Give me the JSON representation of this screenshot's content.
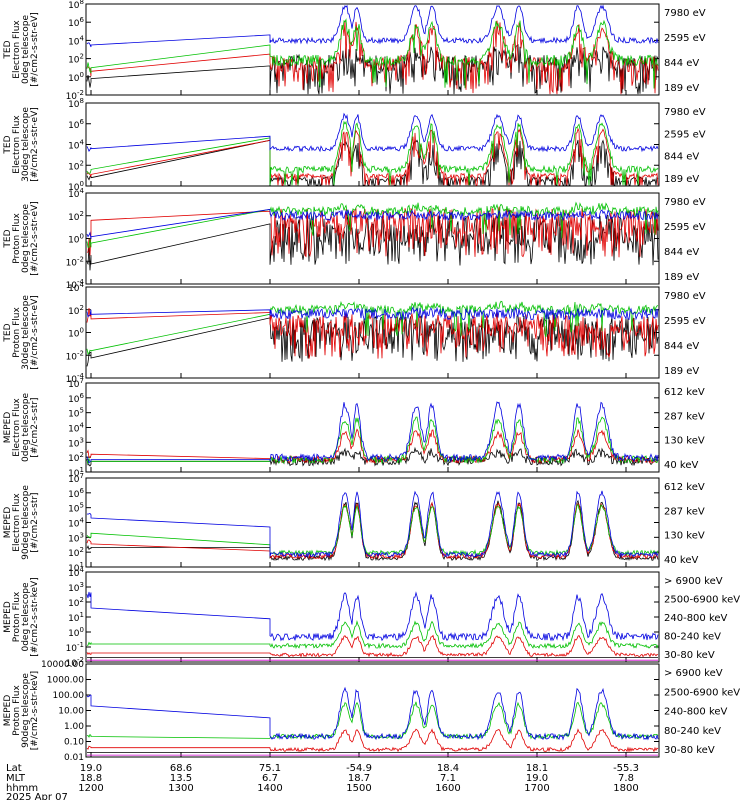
{
  "chart_data": [
    {
      "type": "line",
      "ylabel": [
        "TED",
        "Electron Flux",
        "0deg telescope",
        "[#/cm2-s-str-eV]"
      ],
      "log": true,
      "ylim_exp": [
        -2,
        8
      ],
      "yticks": [
        {
          "base": "10",
          "exp": "8"
        },
        {
          "base": "10",
          "exp": "6"
        },
        {
          "base": "10",
          "exp": "4"
        },
        {
          "base": "10",
          "exp": "2"
        },
        {
          "base": "10",
          "exp": "0"
        },
        {
          "base": "10",
          "exp": "-2"
        }
      ],
      "legend": [
        {
          "label": "7980 eV",
          "color": "#000000"
        },
        {
          "label": "2595 eV",
          "color": "#e00000"
        },
        {
          "label": "844 eV",
          "color": "#00c000"
        },
        {
          "label": "189 eV",
          "color": "#0000e0"
        }
      ]
    },
    {
      "type": "line",
      "ylabel": [
        "TED",
        "Electron Flux",
        "30deg telescope",
        "[#/cm2-s-str-eV]"
      ],
      "log": true,
      "ylim_exp": [
        0,
        8
      ],
      "yticks": [
        {
          "base": "10",
          "exp": "8"
        },
        {
          "base": "10",
          "exp": "6"
        },
        {
          "base": "10",
          "exp": "4"
        },
        {
          "base": "10",
          "exp": "2"
        },
        {
          "base": "10",
          "exp": "0"
        }
      ],
      "legend": [
        {
          "label": "7980 eV",
          "color": "#000000"
        },
        {
          "label": "2595 eV",
          "color": "#e00000"
        },
        {
          "label": "844 eV",
          "color": "#00c000"
        },
        {
          "label": "189 eV",
          "color": "#0000e0"
        }
      ]
    },
    {
      "type": "line",
      "ylabel": [
        "TED",
        "Proton Flux",
        "0deg telescope",
        "[#/cm2-s-str-eV]"
      ],
      "log": true,
      "ylim_exp": [
        -6,
        4
      ],
      "yticks": [
        {
          "base": "10",
          "exp": "4"
        },
        {
          "base": "10",
          "exp": "2"
        },
        {
          "base": "10",
          "exp": "0"
        },
        {
          "base": "10",
          "exp": "-2"
        },
        {
          "base": "10",
          "exp": "-4"
        }
      ],
      "legend": [
        {
          "label": "7980 eV",
          "color": "#000000"
        },
        {
          "label": "2595 eV",
          "color": "#e00000"
        },
        {
          "label": "844 eV",
          "color": "#00c000"
        },
        {
          "label": "189 eV",
          "color": "#0000e0"
        }
      ]
    },
    {
      "type": "line",
      "ylabel": [
        "TED",
        "Proton Flux",
        "30deg telescope",
        "[#/cm2-s-str-eV]"
      ],
      "log": true,
      "ylim_exp": [
        -4,
        4
      ],
      "yticks": [
        {
          "base": "10",
          "exp": "4"
        },
        {
          "base": "10",
          "exp": "2"
        },
        {
          "base": "10",
          "exp": "0"
        },
        {
          "base": "10",
          "exp": "-2"
        },
        {
          "base": "10",
          "exp": "-4"
        }
      ],
      "legend": [
        {
          "label": "7980 eV",
          "color": "#000000"
        },
        {
          "label": "2595 eV",
          "color": "#e00000"
        },
        {
          "label": "844 eV",
          "color": "#00c000"
        },
        {
          "label": "189 eV",
          "color": "#0000e0"
        }
      ]
    },
    {
      "type": "line",
      "ylabel": [
        "MEPED",
        "Electron Flux",
        "0deg telescope",
        "[#/cm2-s-str]"
      ],
      "log": true,
      "ylim_exp": [
        1,
        7
      ],
      "yticks": [
        {
          "base": "10",
          "exp": "7"
        },
        {
          "base": "10",
          "exp": "6"
        },
        {
          "base": "10",
          "exp": "5"
        },
        {
          "base": "10",
          "exp": "4"
        },
        {
          "base": "10",
          "exp": "3"
        },
        {
          "base": "10",
          "exp": "2"
        },
        {
          "base": "10",
          "exp": "1"
        }
      ],
      "legend": [
        {
          "label": "612 keV",
          "color": "#000000"
        },
        {
          "label": "287 keV",
          "color": "#e00000"
        },
        {
          "label": "130 keV",
          "color": "#00c000"
        },
        {
          "label": "40 keV",
          "color": "#0000e0"
        }
      ]
    },
    {
      "type": "line",
      "ylabel": [
        "MEPED",
        "Electron Flux",
        "90deg telescope",
        "[#/cm2-s-str]"
      ],
      "log": true,
      "ylim_exp": [
        1,
        7
      ],
      "yticks": [
        {
          "base": "10",
          "exp": "7"
        },
        {
          "base": "10",
          "exp": "6"
        },
        {
          "base": "10",
          "exp": "5"
        },
        {
          "base": "10",
          "exp": "4"
        },
        {
          "base": "10",
          "exp": "3"
        },
        {
          "base": "10",
          "exp": "2"
        },
        {
          "base": "10",
          "exp": "1"
        }
      ],
      "legend": [
        {
          "label": "612 keV",
          "color": "#000000"
        },
        {
          "label": "287 keV",
          "color": "#e00000"
        },
        {
          "label": "130 keV",
          "color": "#00c000"
        },
        {
          "label": "40 keV",
          "color": "#0000e0"
        }
      ]
    },
    {
      "type": "line",
      "ylabel": [
        "MEPED",
        "Proton Flux",
        "0deg telescope",
        "[#/cm2-s-str-keV]"
      ],
      "log": true,
      "ylim_exp": [
        -2,
        4
      ],
      "yticks": [
        {
          "base": "10",
          "exp": "4"
        },
        {
          "base": "10",
          "exp": "3"
        },
        {
          "base": "10",
          "exp": "2"
        },
        {
          "base": "10",
          "exp": "1"
        },
        {
          "base": "10",
          "exp": "0"
        },
        {
          "base": "10",
          "exp": "-1"
        },
        {
          "base": "10",
          "exp": "-2"
        }
      ],
      "legend": [
        {
          "label": "> 6900 keV",
          "color": "#cc00cc"
        },
        {
          "label": "2500-6900 keV",
          "color": "#000000"
        },
        {
          "label": "240-800 keV",
          "color": "#e00000"
        },
        {
          "label": "80-240 keV",
          "color": "#00c000"
        },
        {
          "label": "30-80 keV",
          "color": "#0000e0"
        }
      ]
    },
    {
      "type": "line",
      "ylabel": [
        "MEPED",
        "Proton Flux",
        "90deg telescope",
        "[#/cm2-s-str-keV]"
      ],
      "log": true,
      "ylim_exp": [
        -2,
        4
      ],
      "yticks_plain": [
        "10000.00",
        "1000.00",
        "100.00",
        "10.00",
        "1.00",
        "0.10",
        "0.01"
      ],
      "legend": [
        {
          "label": "> 6900 keV",
          "color": "#cc00cc"
        },
        {
          "label": "2500-6900 keV",
          "color": "#000000"
        },
        {
          "label": "240-800 keV",
          "color": "#e00000"
        },
        {
          "label": "80-240 keV",
          "color": "#00c000"
        },
        {
          "label": "30-80 keV",
          "color": "#0000e0"
        }
      ]
    }
  ],
  "xaxis": {
    "row_labels": [
      "Lat",
      "MLT",
      "hhmm",
      "2025 Apr 07"
    ],
    "ticks": [
      {
        "lat": "19.0",
        "mlt": "18.8",
        "hhmm": "1200"
      },
      {
        "lat": "68.6",
        "mlt": "13.5",
        "hhmm": "1300"
      },
      {
        "lat": "75.1",
        "mlt": "6.7",
        "hhmm": "1400"
      },
      {
        "lat": "-54.9",
        "mlt": "18.7",
        "hhmm": "1500"
      },
      {
        "lat": "18.4",
        "mlt": "7.1",
        "hhmm": "1600"
      },
      {
        "lat": "18.1",
        "mlt": "19.0",
        "hhmm": "1700"
      },
      {
        "lat": "-55.3",
        "mlt": "7.8",
        "hhmm": "1800"
      }
    ]
  }
}
